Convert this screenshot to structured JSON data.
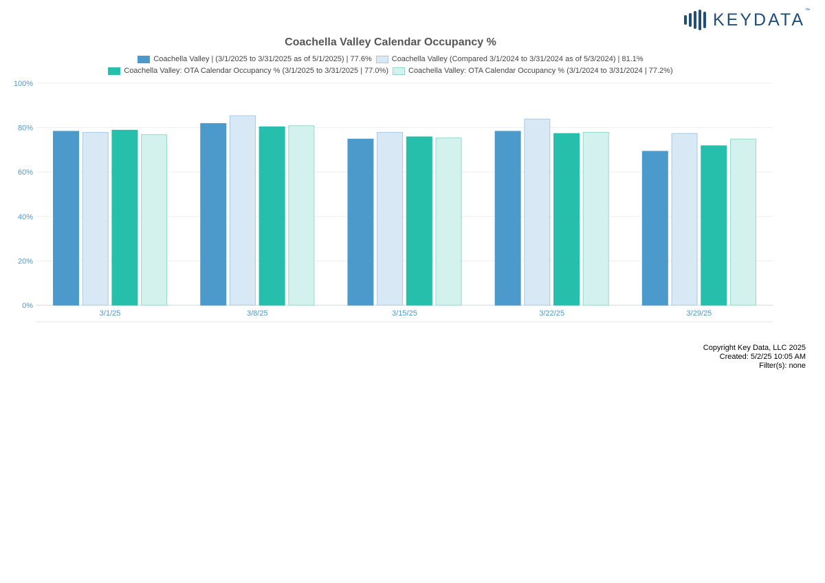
{
  "brand": {
    "logo_text": "KEYDATA",
    "trademark": "™"
  },
  "chart_data": {
    "type": "bar",
    "title": "Coachella Valley Calendar Occupancy %",
    "xlabel": "",
    "ylabel": "",
    "categories": [
      "3/1/25",
      "3/8/25",
      "3/15/25",
      "3/22/25",
      "3/29/25"
    ],
    "y_ticks": [
      "0%",
      "20%",
      "40%",
      "60%",
      "80%",
      "100%"
    ],
    "ylim": [
      0,
      100
    ],
    "grid": true,
    "legend_position": "top-center",
    "series": [
      {
        "name": "Coachella Valley | (3/1/2025 to 3/31/2025 as of 5/1/2025) | 77.6%",
        "values": [
          78.5,
          82,
          75,
          78.5,
          69.5
        ],
        "fill": "#4b9acb",
        "stroke": "#4b9acb"
      },
      {
        "name": "Coachella Valley (Compared 3/1/2024 to 3/31/2024 as of 5/3/2024) | 81.1%",
        "values": [
          78,
          85.5,
          78,
          84,
          77.5
        ],
        "fill": "#d9e8f5",
        "stroke": "#a7c9e2"
      },
      {
        "name": "Coachella Valley: OTA Calendar Occupancy % (3/1/2025 to 3/31/2025 | 77.0%)",
        "values": [
          79,
          80.5,
          76,
          77.5,
          72
        ],
        "fill": "#26bfab",
        "stroke": "#26bfab"
      },
      {
        "name": "Coachella Valley: OTA Calendar Occupancy % (3/1/2024 to 3/31/2024 | 77.2%)",
        "values": [
          77,
          81,
          75.5,
          78,
          75
        ],
        "fill": "#d3f2ed",
        "stroke": "#8fd8cc"
      }
    ]
  },
  "footer": {
    "copyright": "Copyright Key Data, LLC 2025",
    "created": "Created: 5/2/25 10:05 AM",
    "filters": "Filter(s): none"
  }
}
